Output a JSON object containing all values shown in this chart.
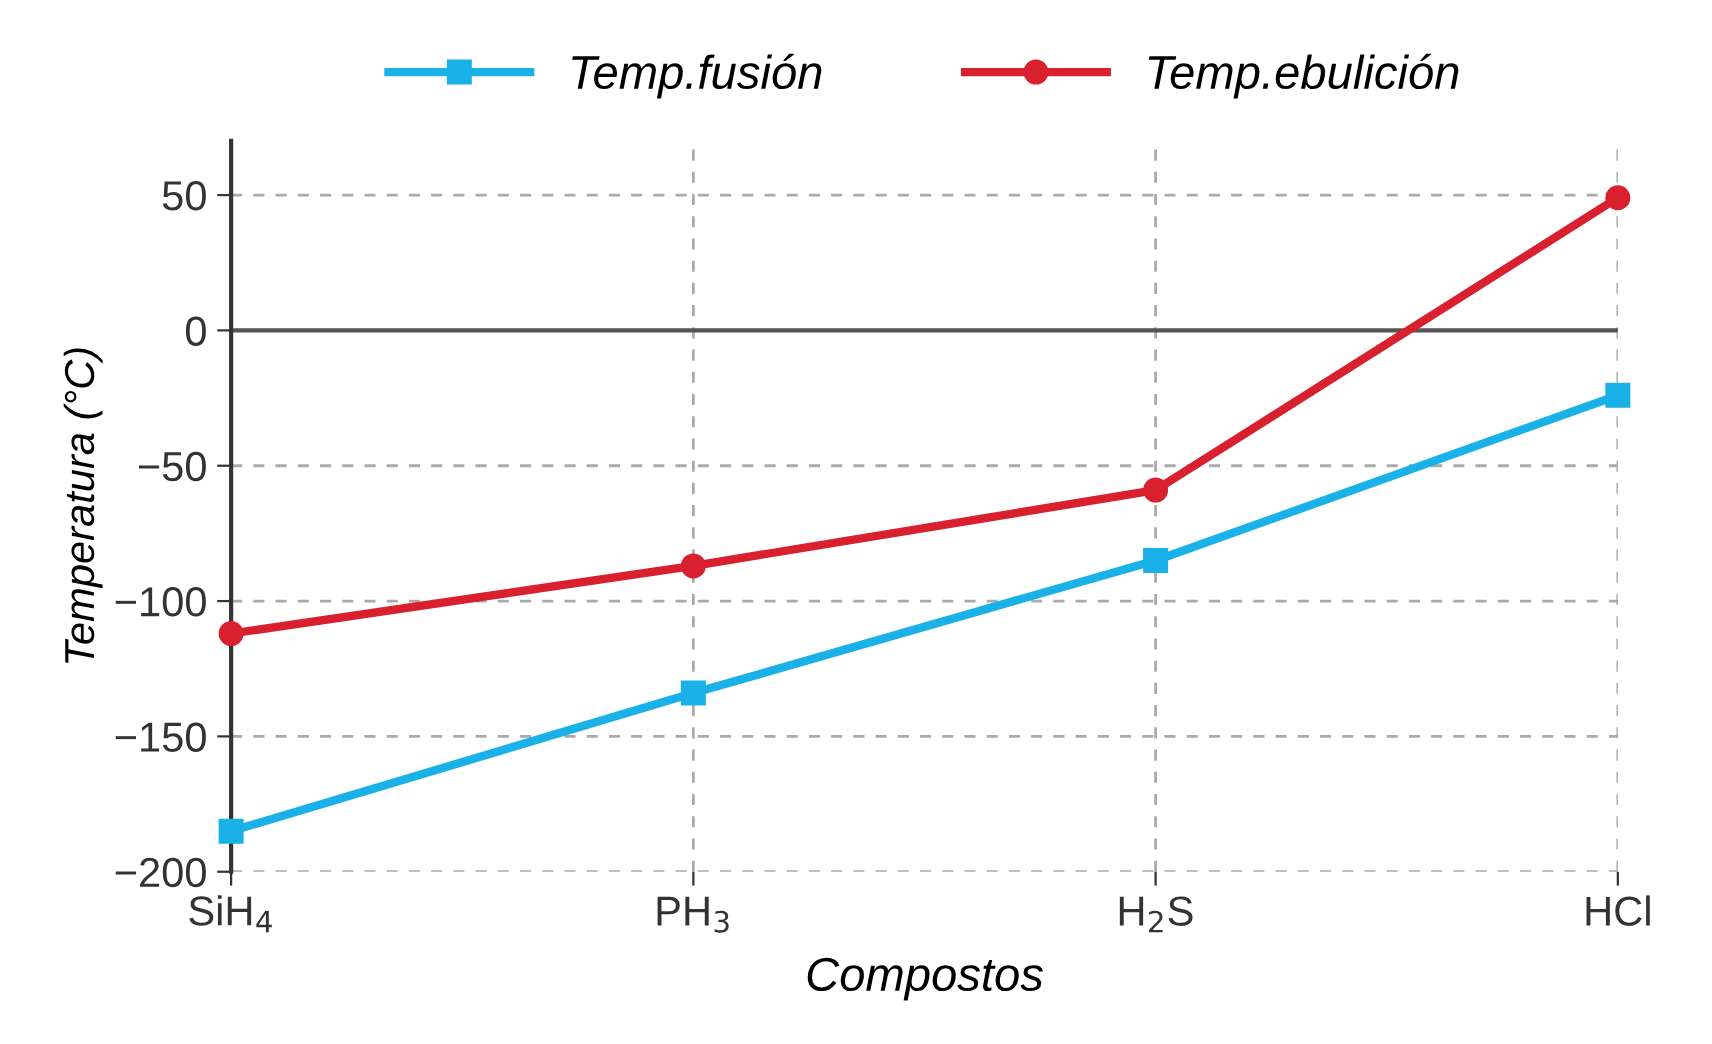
{
  "chart_data": {
    "type": "line",
    "xlabel": "Compostos",
    "ylabel": "Temperatura (°C)",
    "categories": [
      "SiH$_{4}$",
      "PH$_{3}$",
      "H$_{2}$S",
      "HCl"
    ],
    "series": [
      {
        "name": "Temp.fusión",
        "color": "#1ab0e8",
        "marker": "square",
        "values": [
          -185,
          -134,
          -85,
          -24
        ]
      },
      {
        "name": "Temp.ebulición",
        "color": "#d9202f",
        "marker": "circle",
        "values": [
          -112,
          -87,
          -59,
          49
        ]
      }
    ],
    "ylim": [
      -200,
      70
    ],
    "yticks": [
      -200,
      -150,
      -100,
      -50,
      0,
      50
    ],
    "ref_lines": [
      {
        "axis": "y",
        "value": 0,
        "color": "#555555",
        "line_style": "solid"
      }
    ],
    "grid": true,
    "legend": "top",
    "line_style": "solid"
  }
}
